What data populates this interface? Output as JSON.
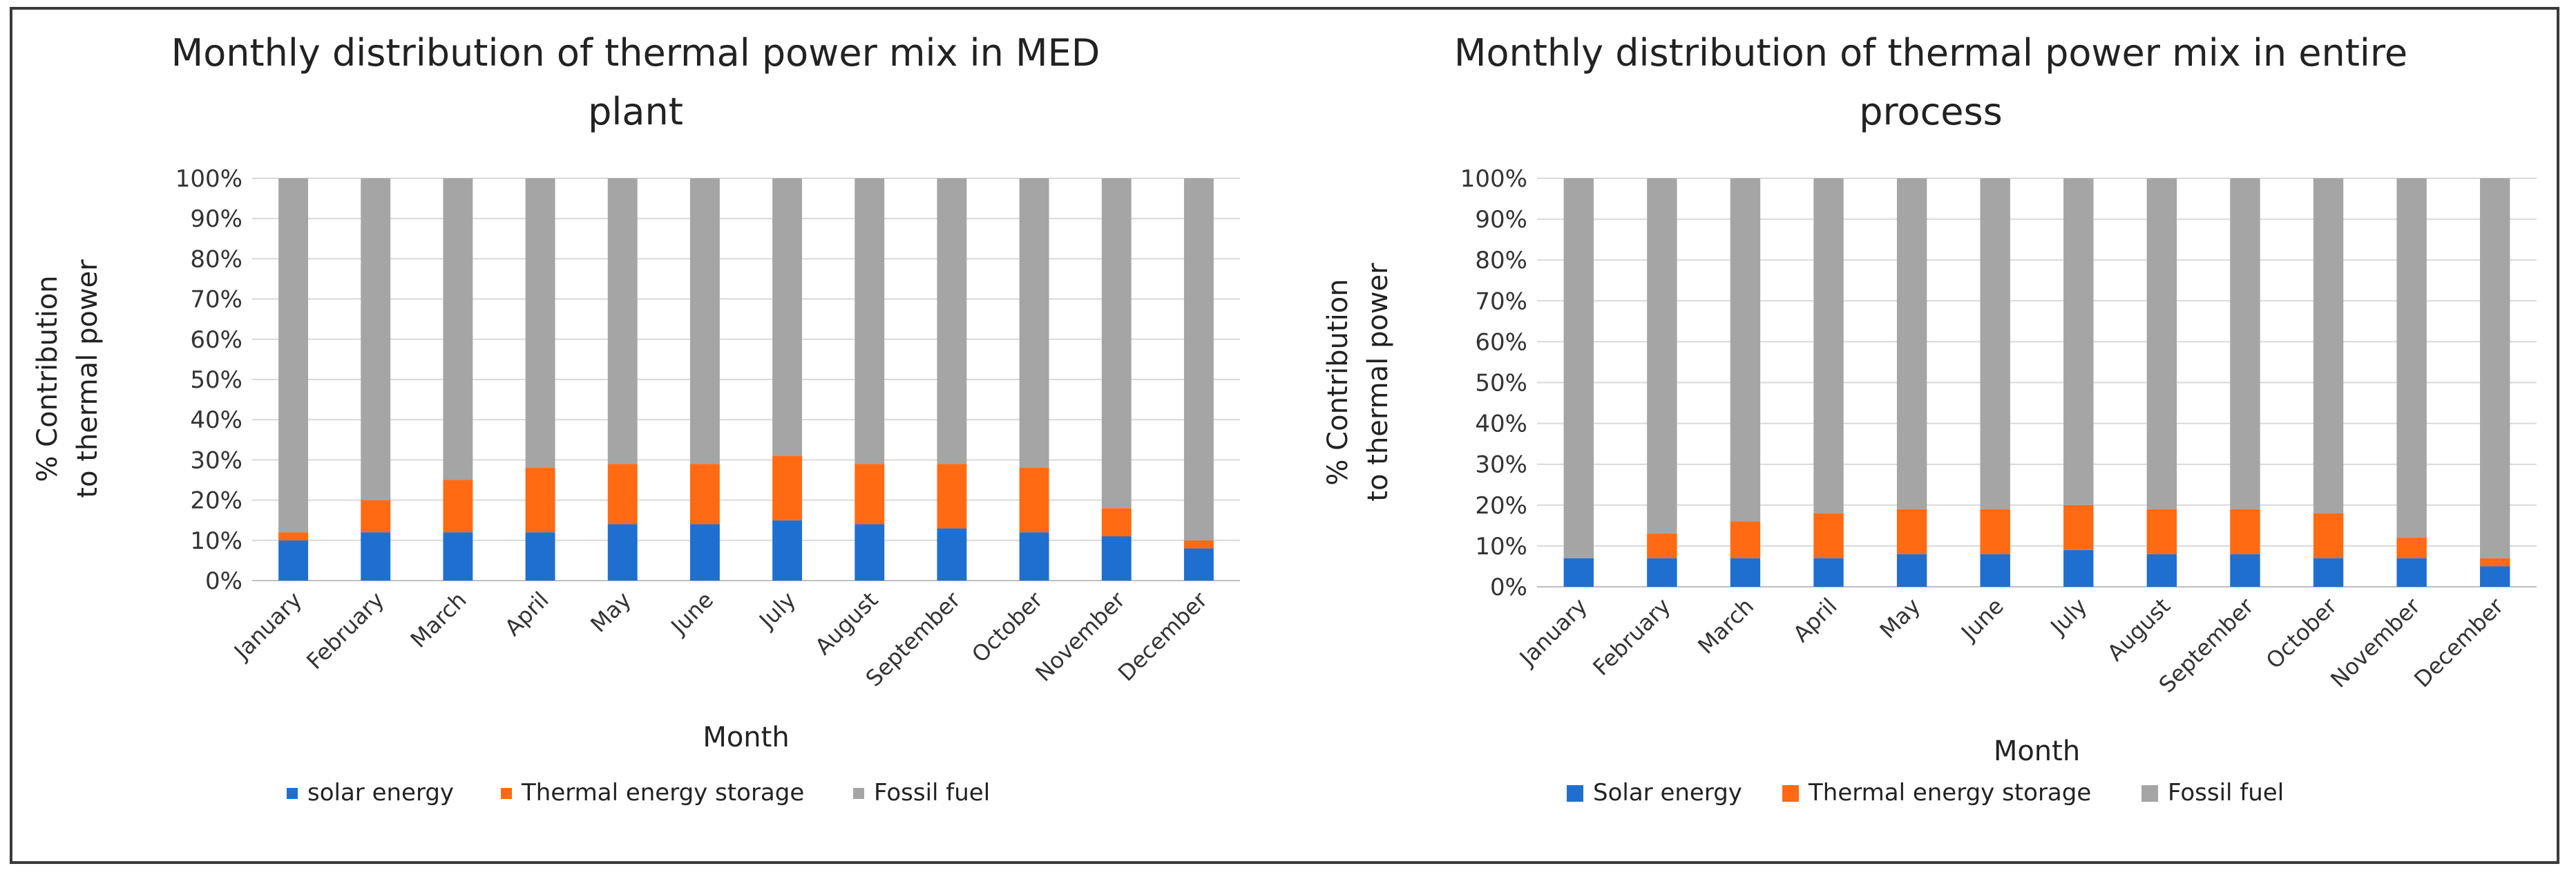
{
  "colors": {
    "solar": "#1f6fd1",
    "storage": "#ff6a13",
    "fossil": "#a5a5a5",
    "grid": "#d9d9d9",
    "axis": "#bfbfbf"
  },
  "chart_data": [
    {
      "type": "bar",
      "stacked": true,
      "title_lines": [
        "Monthly distribution of thermal power mix in MED",
        "plant"
      ],
      "xlabel": "Month",
      "ylabel_lines": [
        "% Contribution",
        "to thermal power"
      ],
      "ylim": [
        0,
        100
      ],
      "yticks": [
        "0%",
        "10%",
        "20%",
        "30%",
        "40%",
        "50%",
        "60%",
        "70%",
        "80%",
        "90%",
        "100%"
      ],
      "categories": [
        "January",
        "February",
        "March",
        "April",
        "May",
        "June",
        "July",
        "August",
        "September",
        "October",
        "November",
        "December"
      ],
      "series": [
        {
          "name": "solar energy",
          "color_key": "solar",
          "values": [
            10,
            12,
            12,
            12,
            14,
            14,
            15,
            14,
            13,
            12,
            11,
            8
          ]
        },
        {
          "name": "Thermal energy storage",
          "color_key": "storage",
          "values": [
            2,
            8,
            13,
            16,
            15,
            15,
            16,
            15,
            16,
            16,
            7,
            2
          ]
        },
        {
          "name": "Fossil fuel",
          "color_key": "fossil",
          "values": [
            88,
            80,
            75,
            72,
            71,
            71,
            69,
            71,
            71,
            72,
            82,
            90
          ]
        }
      ],
      "legend_position": "bottom"
    },
    {
      "type": "bar",
      "stacked": true,
      "title_lines": [
        "Monthly distribution of thermal power mix in entire",
        "process"
      ],
      "xlabel": "Month",
      "ylabel_lines": [
        "% Contribution",
        "to thermal power"
      ],
      "ylim": [
        0,
        100
      ],
      "yticks": [
        "0%",
        "10%",
        "20%",
        "30%",
        "40%",
        "50%",
        "60%",
        "70%",
        "80%",
        "90%",
        "100%"
      ],
      "categories": [
        "January",
        "February",
        "March",
        "April",
        "May",
        "June",
        "July",
        "August",
        "September",
        "October",
        "November",
        "December"
      ],
      "series": [
        {
          "name": "Solar energy",
          "color_key": "solar",
          "values": [
            7,
            7,
            7,
            7,
            8,
            8,
            9,
            8,
            8,
            7,
            7,
            5
          ]
        },
        {
          "name": "Thermal energy storage",
          "color_key": "storage",
          "values": [
            0,
            6,
            9,
            11,
            11,
            11,
            11,
            11,
            11,
            11,
            5,
            2
          ]
        },
        {
          "name": "Fossil fuel",
          "color_key": "fossil",
          "values": [
            93,
            87,
            84,
            82,
            81,
            81,
            80,
            81,
            81,
            82,
            88,
            93
          ]
        }
      ],
      "legend_position": "bottom"
    }
  ]
}
